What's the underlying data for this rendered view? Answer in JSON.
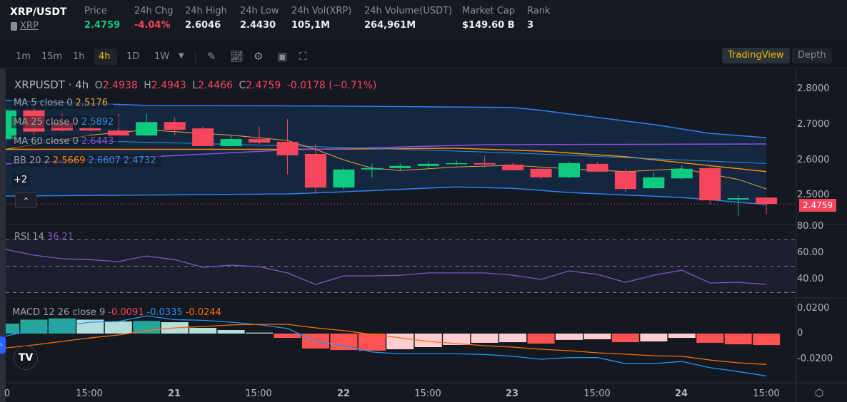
{
  "header": {
    "symbol": "XRP/USDT",
    "sub_label": "XRP",
    "stats": [
      {
        "label": "Price",
        "value": "2.4759",
        "color": "#0ecb81"
      },
      {
        "label": "24h Chg",
        "value": "-4.04%",
        "color": "#f6465d"
      },
      {
        "label": "24h High",
        "value": "2.6046"
      },
      {
        "label": "24h Low",
        "value": "2.4430"
      },
      {
        "label": "24h Vol(XRP)",
        "value": "105,1M"
      },
      {
        "label": "24h Volume(USDT)",
        "value": "264,961M"
      },
      {
        "label": "Market Cap",
        "value": "$149.60 B"
      },
      {
        "label": "Rank",
        "value": "3"
      }
    ]
  },
  "toolbar": {
    "intervals": [
      "1m",
      "15m",
      "1h",
      "4h",
      "1D",
      "1W"
    ],
    "active": "4h",
    "tradingview": "TradingView",
    "depth": "Depth"
  },
  "legend": {
    "title": "XRPUSDT · 4h",
    "o": "O",
    "ov": "2.4938",
    "h": "H",
    "hv": "2.4943",
    "l": "L",
    "lv": "2.4466",
    "c": "C",
    "cv": "2.4759",
    "chg": "-0.0178 (−0.71%)",
    "ma5": "MA 5 close 0",
    "ma5v": "2.5176",
    "ma25": "MA 25 close 0",
    "ma25v": "2.5892",
    "ma60": "MA 60 close 0",
    "ma60v": "2.6443",
    "bb": "BB 20 2",
    "bb1": "2.5669",
    "bb2": "2.6607",
    "bb3": "2.4732",
    "more": "+2",
    "rsi": "RSI 14",
    "rsiv": "36.21",
    "macd": "MACD 12 26 close 9",
    "macd1": "-0.0091",
    "macd2": "-0.0335",
    "macd3": "-0.0244"
  },
  "axes": {
    "price": [
      "2.8000",
      "2.7000",
      "2.6000",
      "2.5000"
    ],
    "last_price": "2.4759",
    "rsi": [
      "80.00",
      "60.00",
      "40.00"
    ],
    "macd": [
      "0.0200",
      "0",
      "-0.0200"
    ],
    "time": [
      "0",
      "15:00",
      "21",
      "15:00",
      "22",
      "15:00",
      "23",
      "15:00",
      "24",
      "15:00"
    ]
  },
  "chart_data": {
    "type": "candlestick",
    "title": "XRPUSDT 4h",
    "candles": [
      [
        2.66,
        2.745,
        2.65,
        2.74
      ],
      [
        2.74,
        2.75,
        2.67,
        2.68
      ],
      [
        2.705,
        2.73,
        2.68,
        2.683
      ],
      [
        2.69,
        2.7,
        2.68,
        2.683
      ],
      [
        2.683,
        2.73,
        2.67,
        2.669
      ],
      [
        2.669,
        2.73,
        2.667,
        2.707
      ],
      [
        2.707,
        2.72,
        2.67,
        2.685
      ],
      [
        2.689,
        2.695,
        2.639,
        2.639
      ],
      [
        2.639,
        2.67,
        2.638,
        2.659
      ],
      [
        2.659,
        2.695,
        2.645,
        2.649
      ],
      [
        2.651,
        2.715,
        2.56,
        2.613
      ],
      [
        2.617,
        2.645,
        2.505,
        2.522
      ],
      [
        2.522,
        2.578,
        2.516,
        2.573
      ],
      [
        2.573,
        2.59,
        2.55,
        2.577
      ],
      [
        2.577,
        2.59,
        2.57,
        2.583
      ],
      [
        2.583,
        2.595,
        2.575,
        2.589
      ],
      [
        2.589,
        2.598,
        2.585,
        2.591
      ],
      [
        2.591,
        2.61,
        2.58,
        2.587
      ],
      [
        2.587,
        2.592,
        2.57,
        2.571
      ],
      [
        2.575,
        2.58,
        2.545,
        2.551
      ],
      [
        2.551,
        2.595,
        2.548,
        2.591
      ],
      [
        2.589,
        2.595,
        2.565,
        2.567
      ],
      [
        2.567,
        2.575,
        2.51,
        2.518
      ],
      [
        2.52,
        2.565,
        2.518,
        2.551
      ],
      [
        2.548,
        2.585,
        2.545,
        2.575
      ],
      [
        2.577,
        2.585,
        2.475,
        2.486
      ],
      [
        2.488,
        2.5,
        2.443,
        2.492
      ],
      [
        2.4938,
        2.4943,
        2.4466,
        2.4759
      ]
    ],
    "ma5": [
      [
        0,
        2.63
      ],
      [
        3,
        2.67
      ],
      [
        5,
        2.685
      ],
      [
        8,
        2.67
      ],
      [
        10,
        2.655
      ],
      [
        11,
        2.63
      ],
      [
        12,
        2.6
      ],
      [
        13,
        2.577
      ],
      [
        14,
        2.57
      ],
      [
        16,
        2.58
      ],
      [
        18,
        2.585
      ],
      [
        20,
        2.575
      ],
      [
        22,
        2.567
      ],
      [
        24,
        2.575
      ],
      [
        26,
        2.545
      ],
      [
        27,
        2.518
      ]
    ],
    "ma25": [
      [
        0,
        2.66
      ],
      [
        10,
        2.64
      ],
      [
        18,
        2.62
      ],
      [
        27,
        2.59
      ]
    ],
    "ma60": [
      [
        0,
        2.589
      ],
      [
        10,
        2.628
      ],
      [
        17,
        2.643
      ],
      [
        27,
        2.645
      ]
    ],
    "bb_upper": [
      [
        0,
        2.768
      ],
      [
        5,
        2.754
      ],
      [
        12,
        2.752
      ],
      [
        18,
        2.748
      ],
      [
        19,
        2.74
      ],
      [
        21,
        2.72
      ],
      [
        23,
        2.7
      ],
      [
        25,
        2.675
      ],
      [
        27,
        2.663
      ]
    ],
    "bb_mid": [
      [
        0,
        2.63
      ],
      [
        10,
        2.63
      ],
      [
        16,
        2.633
      ],
      [
        19,
        2.625
      ],
      [
        22,
        2.609
      ],
      [
        27,
        2.567
      ]
    ],
    "bb_lower": [
      [
        0,
        2.498
      ],
      [
        10,
        2.504
      ],
      [
        12,
        2.51
      ],
      [
        16,
        2.524
      ],
      [
        18,
        2.52
      ],
      [
        20,
        2.508
      ],
      [
        24,
        2.494
      ],
      [
        27,
        2.474
      ]
    ],
    "price_range": [
      2.4,
      2.8
    ],
    "rsi": [
      62.7,
      58.4,
      55.7,
      55,
      53.5,
      57.8,
      55,
      49.2,
      50.8,
      49.7,
      44.9,
      36.2,
      42.7,
      42.7,
      43.2,
      44.9,
      44.9,
      44.9,
      43.2,
      40,
      46.5,
      43.8,
      37.8,
      43.2,
      47,
      37.3,
      37.8,
      36.2
    ],
    "rsi_levels": [
      70,
      50,
      30
    ],
    "macd_hist": [
      0.0079,
      0.011,
      0.012,
      0.011,
      0.0096,
      0.01,
      0.009,
      0.0045,
      0.0028,
      0.0008,
      -0.0034,
      -0.0118,
      -0.013,
      -0.0135,
      -0.0124,
      -0.0107,
      -0.009,
      -0.0073,
      -0.0068,
      -0.0079,
      -0.005,
      -0.0045,
      -0.0068,
      -0.0062,
      -0.0034,
      -0.0073,
      -0.0085,
      -0.0091
    ],
    "macd_line": [
      -0.002,
      0.003,
      0.006,
      0.009,
      0.0096,
      0.014,
      0.011,
      0.0105,
      0.009,
      0.007,
      0.004,
      -0.006,
      -0.0096,
      -0.0146,
      -0.016,
      -0.016,
      -0.016,
      -0.0165,
      -0.018,
      -0.0203,
      -0.019,
      -0.019,
      -0.0237,
      -0.0237,
      -0.022,
      -0.027,
      -0.03,
      -0.0335
    ],
    "signal_line": [
      -0.0113,
      -0.009,
      -0.0062,
      -0.0034,
      -0.0011,
      0.0023,
      0.0045,
      0.0056,
      0.0068,
      0.0073,
      0.0073,
      0.0045,
      0.0023,
      -0.0006,
      -0.0034,
      -0.0062,
      -0.0079,
      -0.0096,
      -0.0107,
      -0.0124,
      -0.0135,
      -0.0152,
      -0.0163,
      -0.0175,
      -0.018,
      -0.0209,
      -0.0231,
      -0.0244
    ],
    "colors": {
      "up": "#0ecb81",
      "down": "#f6465d",
      "ma5": "#e8a33a",
      "ma25": "#2d8ee0",
      "ma60": "#8b4fe0",
      "bb_mid": "#ff8a00",
      "bb_band": "#2f7ff0",
      "rsi": "#7e57c2",
      "macd": "#2196f3",
      "signal": "#ff6d00"
    }
  }
}
